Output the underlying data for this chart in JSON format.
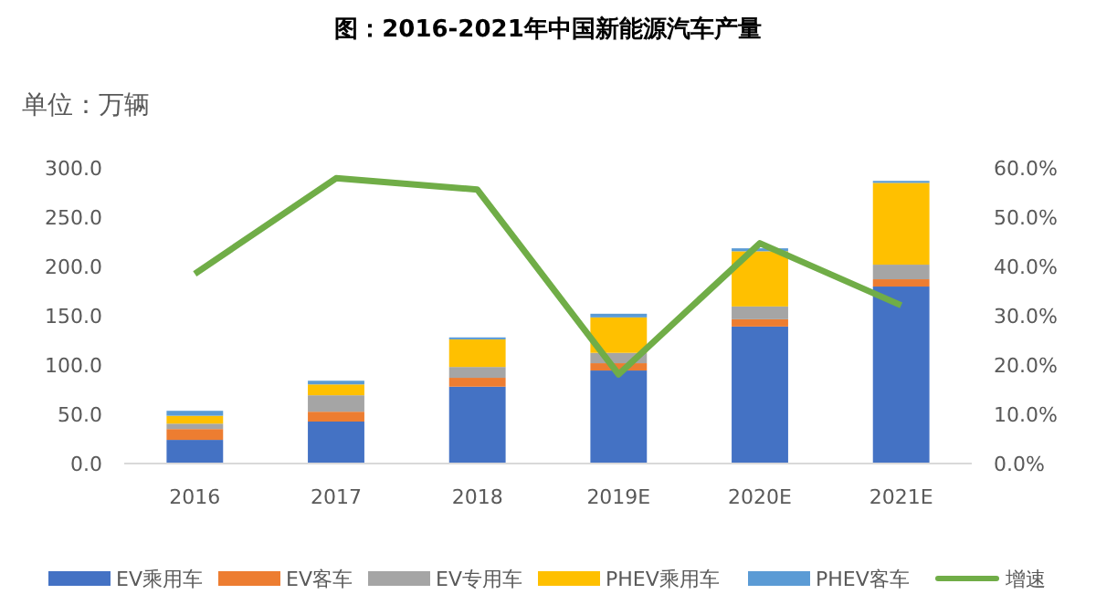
{
  "chart_data": {
    "type": "bar",
    "stacked": true,
    "title": "图：2016-2021年中国新能源汽车产量",
    "ylabel": "单位：万辆",
    "categories": [
      "2016",
      "2017",
      "2018",
      "2019E",
      "2020E",
      "2021E"
    ],
    "series": [
      {
        "name": "EV乘用车",
        "color": "#4472c4",
        "values": [
          24,
          42.6,
          78,
          94.4,
          139,
          179.6
        ]
      },
      {
        "name": "EV客车",
        "color": "#ed7d31",
        "values": [
          11,
          10,
          9,
          7.4,
          7.4,
          7.4
        ]
      },
      {
        "name": "EV专用车",
        "color": "#a5a5a5",
        "values": [
          5.5,
          16.7,
          11,
          10.5,
          13,
          14.8
        ]
      },
      {
        "name": "PHEV乘用车",
        "color": "#ffc000",
        "values": [
          8,
          11,
          28,
          36,
          56,
          83
        ]
      },
      {
        "name": "PHEV客车",
        "color": "#5b9bd5",
        "values": [
          5,
          3.7,
          2,
          3.7,
          3,
          2
        ]
      },
      {
        "name": "增速",
        "type": "line",
        "axis": "y2",
        "color": "#70ad47",
        "values": [
          38.5,
          57.9,
          55.6,
          18.1,
          44.7,
          32.1
        ]
      }
    ],
    "ylim": [
      0,
      300
    ],
    "yticks": [
      {
        "value": 0,
        "label": "0.0"
      },
      {
        "value": 50,
        "label": "50.0"
      },
      {
        "value": 100,
        "label": "100.0"
      },
      {
        "value": 150,
        "label": "150.0"
      },
      {
        "value": 200,
        "label": "200.0"
      },
      {
        "value": 250,
        "label": "250.0"
      },
      {
        "value": 300,
        "label": "300.0"
      }
    ],
    "y2lim": [
      0,
      60
    ],
    "y2ticks": [
      {
        "value": 0,
        "label": "0.0%"
      },
      {
        "value": 10,
        "label": "10.0%"
      },
      {
        "value": 20,
        "label": "20.0%"
      },
      {
        "value": 30,
        "label": "30.0%"
      },
      {
        "value": 40,
        "label": "40.0%"
      },
      {
        "value": 50,
        "label": "50.0%"
      },
      {
        "value": 60,
        "label": "60.0%"
      }
    ],
    "grid": false,
    "legend": "bottom",
    "marker": "none",
    "line_style": "solid"
  }
}
